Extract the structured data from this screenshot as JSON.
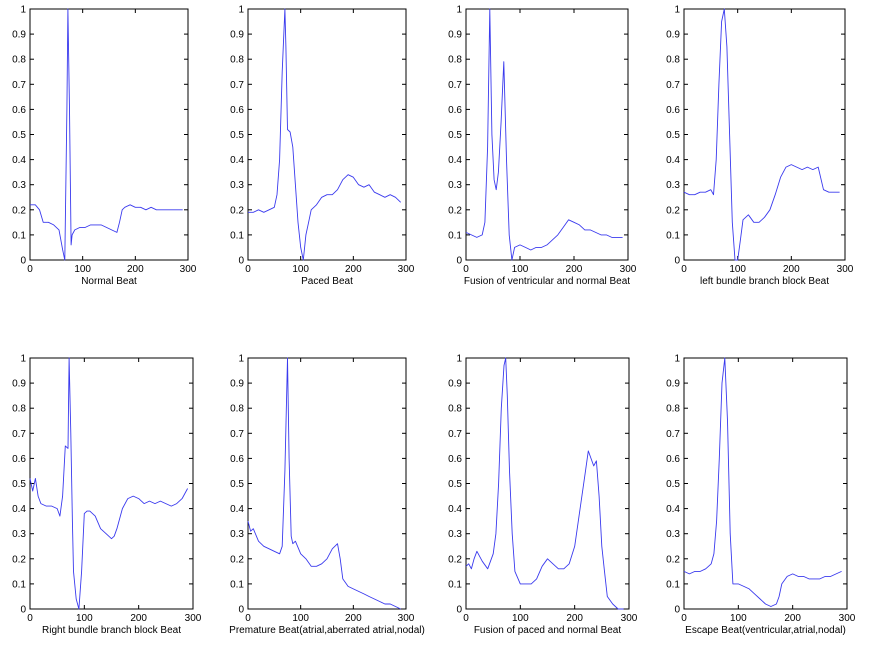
{
  "colors": {
    "trace": "#3a3aee",
    "axes": "#000000",
    "background": "#ffffff"
  },
  "chart_data": [
    {
      "type": "line",
      "xlabel": "Normal Beat",
      "xlim": [
        0,
        300
      ],
      "ylim": [
        0,
        1
      ],
      "xticks": [
        0,
        100,
        200,
        300
      ],
      "yticks": [
        0,
        0.1,
        0.2,
        0.3,
        0.4,
        0.5,
        0.6,
        0.7,
        0.8,
        0.9,
        1
      ],
      "series": [
        {
          "name": "Normal Beat",
          "x": [
            0,
            10,
            18,
            25,
            35,
            45,
            55,
            62,
            66,
            70,
            72,
            75,
            78,
            80,
            85,
            95,
            105,
            115,
            125,
            135,
            145,
            155,
            165,
            170,
            175,
            180,
            190,
            200,
            210,
            220,
            230,
            240,
            250,
            260,
            270,
            280,
            290
          ],
          "y": [
            0.22,
            0.22,
            0.2,
            0.15,
            0.15,
            0.14,
            0.12,
            0.04,
            0.0,
            0.6,
            1.0,
            0.6,
            0.06,
            0.1,
            0.12,
            0.13,
            0.13,
            0.14,
            0.14,
            0.14,
            0.13,
            0.12,
            0.11,
            0.15,
            0.2,
            0.21,
            0.22,
            0.21,
            0.21,
            0.2,
            0.21,
            0.2,
            0.2,
            0.2,
            0.2,
            0.2,
            0.2
          ]
        }
      ]
    },
    {
      "type": "line",
      "xlabel": "Paced Beat",
      "xlim": [
        0,
        300
      ],
      "ylim": [
        0,
        1
      ],
      "xticks": [
        0,
        100,
        200,
        300
      ],
      "yticks": [
        0,
        0.1,
        0.2,
        0.3,
        0.4,
        0.5,
        0.6,
        0.7,
        0.8,
        0.9,
        1
      ],
      "series": [
        {
          "name": "Paced Beat",
          "x": [
            0,
            10,
            20,
            30,
            40,
            50,
            55,
            60,
            65,
            70,
            72,
            75,
            80,
            85,
            90,
            95,
            100,
            105,
            110,
            115,
            120,
            130,
            140,
            150,
            160,
            170,
            180,
            190,
            200,
            210,
            220,
            230,
            240,
            250,
            260,
            270,
            280,
            290
          ],
          "y": [
            0.19,
            0.19,
            0.2,
            0.19,
            0.2,
            0.21,
            0.26,
            0.4,
            0.75,
            1.0,
            0.85,
            0.52,
            0.51,
            0.45,
            0.3,
            0.15,
            0.05,
            0.0,
            0.1,
            0.15,
            0.2,
            0.22,
            0.25,
            0.26,
            0.26,
            0.28,
            0.32,
            0.34,
            0.33,
            0.3,
            0.29,
            0.3,
            0.27,
            0.26,
            0.25,
            0.26,
            0.25,
            0.23
          ]
        }
      ]
    },
    {
      "type": "line",
      "xlabel": "Fusion of ventricular and normal Beat",
      "xlim": [
        0,
        300
      ],
      "ylim": [
        0,
        1
      ],
      "xticks": [
        0,
        100,
        200,
        300
      ],
      "yticks": [
        0,
        0.1,
        0.2,
        0.3,
        0.4,
        0.5,
        0.6,
        0.7,
        0.8,
        0.9,
        1
      ],
      "series": [
        {
          "name": "Fusion of ventricular and normal Beat",
          "x": [
            0,
            10,
            20,
            30,
            35,
            40,
            44,
            48,
            52,
            56,
            60,
            65,
            70,
            75,
            80,
            85,
            90,
            100,
            110,
            120,
            130,
            140,
            150,
            160,
            170,
            180,
            190,
            200,
            210,
            220,
            230,
            240,
            250,
            260,
            270,
            280,
            290
          ],
          "y": [
            0.11,
            0.1,
            0.09,
            0.1,
            0.15,
            0.45,
            1.0,
            0.5,
            0.32,
            0.28,
            0.35,
            0.55,
            0.79,
            0.4,
            0.1,
            0.0,
            0.05,
            0.06,
            0.05,
            0.04,
            0.05,
            0.05,
            0.06,
            0.08,
            0.1,
            0.13,
            0.16,
            0.15,
            0.14,
            0.12,
            0.12,
            0.11,
            0.1,
            0.1,
            0.09,
            0.09,
            0.09
          ]
        }
      ]
    },
    {
      "type": "line",
      "xlabel": "left bundle branch block Beat",
      "xlim": [
        0,
        300
      ],
      "ylim": [
        0,
        1
      ],
      "xticks": [
        0,
        100,
        200,
        300
      ],
      "yticks": [
        0,
        0.1,
        0.2,
        0.3,
        0.4,
        0.5,
        0.6,
        0.7,
        0.8,
        0.9,
        1
      ],
      "series": [
        {
          "name": "left bundle branch block Beat",
          "x": [
            0,
            10,
            20,
            30,
            40,
            50,
            55,
            60,
            65,
            70,
            75,
            80,
            85,
            90,
            95,
            100,
            105,
            110,
            120,
            130,
            140,
            150,
            160,
            170,
            180,
            190,
            200,
            210,
            220,
            230,
            240,
            250,
            260,
            270,
            280,
            290
          ],
          "y": [
            0.27,
            0.26,
            0.26,
            0.27,
            0.27,
            0.28,
            0.26,
            0.4,
            0.7,
            0.95,
            1.0,
            0.85,
            0.5,
            0.15,
            0.0,
            0.0,
            0.08,
            0.16,
            0.18,
            0.15,
            0.15,
            0.17,
            0.2,
            0.26,
            0.33,
            0.37,
            0.38,
            0.37,
            0.36,
            0.37,
            0.36,
            0.37,
            0.28,
            0.27,
            0.27,
            0.27
          ]
        }
      ]
    },
    {
      "type": "line",
      "xlabel": "Right bundle branch block Beat",
      "xlim": [
        0,
        300
      ],
      "ylim": [
        0,
        1
      ],
      "xticks": [
        0,
        100,
        200,
        300
      ],
      "yticks": [
        0,
        0.1,
        0.2,
        0.3,
        0.4,
        0.5,
        0.6,
        0.7,
        0.8,
        0.9,
        1
      ],
      "series": [
        {
          "name": "Right bundle branch block Beat",
          "x": [
            0,
            5,
            10,
            15,
            20,
            30,
            40,
            50,
            55,
            60,
            65,
            70,
            72,
            75,
            78,
            80,
            85,
            90,
            95,
            100,
            105,
            110,
            120,
            130,
            140,
            150,
            155,
            160,
            170,
            180,
            190,
            200,
            210,
            220,
            230,
            240,
            250,
            260,
            270,
            280,
            290
          ],
          "y": [
            0.52,
            0.47,
            0.52,
            0.45,
            0.42,
            0.41,
            0.41,
            0.4,
            0.37,
            0.45,
            0.65,
            0.64,
            1.0,
            0.7,
            0.35,
            0.15,
            0.04,
            0.0,
            0.15,
            0.38,
            0.39,
            0.39,
            0.37,
            0.32,
            0.3,
            0.28,
            0.29,
            0.32,
            0.4,
            0.44,
            0.45,
            0.44,
            0.42,
            0.43,
            0.42,
            0.43,
            0.42,
            0.41,
            0.42,
            0.44,
            0.48
          ]
        }
      ]
    },
    {
      "type": "line",
      "xlabel": "Premature Beat(atrial,aberrated atrial,nodal)",
      "xlim": [
        0,
        300
      ],
      "ylim": [
        0,
        1
      ],
      "xticks": [
        0,
        100,
        200,
        300
      ],
      "yticks": [
        0,
        0.1,
        0.2,
        0.3,
        0.4,
        0.5,
        0.6,
        0.7,
        0.8,
        0.9,
        1
      ],
      "series": [
        {
          "name": "Premature Beat(atrial,aberrated atrial,nodal)",
          "x": [
            0,
            5,
            10,
            20,
            30,
            40,
            50,
            60,
            65,
            70,
            75,
            78,
            82,
            85,
            90,
            100,
            110,
            120,
            130,
            140,
            150,
            160,
            170,
            175,
            180,
            190,
            200,
            210,
            220,
            230,
            240,
            250,
            260,
            270,
            280,
            290
          ],
          "y": [
            0.35,
            0.31,
            0.32,
            0.27,
            0.25,
            0.24,
            0.23,
            0.22,
            0.25,
            0.55,
            1.0,
            0.6,
            0.29,
            0.26,
            0.27,
            0.22,
            0.2,
            0.17,
            0.17,
            0.18,
            0.2,
            0.24,
            0.26,
            0.2,
            0.12,
            0.09,
            0.08,
            0.07,
            0.06,
            0.05,
            0.04,
            0.03,
            0.02,
            0.02,
            0.01,
            0.0
          ]
        }
      ]
    },
    {
      "type": "line",
      "xlabel": "Fusion of paced and normal Beat",
      "xlim": [
        0,
        300
      ],
      "ylim": [
        0,
        1
      ],
      "xticks": [
        0,
        100,
        200,
        300
      ],
      "yticks": [
        0,
        0.1,
        0.2,
        0.3,
        0.4,
        0.5,
        0.6,
        0.7,
        0.8,
        0.9,
        1
      ],
      "series": [
        {
          "name": "Fusion of paced and normal Beat",
          "x": [
            0,
            5,
            10,
            15,
            20,
            30,
            40,
            50,
            55,
            60,
            65,
            70,
            73,
            76,
            80,
            85,
            90,
            100,
            110,
            120,
            130,
            140,
            150,
            160,
            170,
            180,
            190,
            200,
            210,
            220,
            225,
            230,
            235,
            240,
            245,
            250,
            255,
            260,
            270,
            280,
            290
          ],
          "y": [
            0.17,
            0.18,
            0.16,
            0.2,
            0.23,
            0.19,
            0.16,
            0.22,
            0.3,
            0.5,
            0.8,
            0.97,
            1.0,
            0.85,
            0.55,
            0.3,
            0.15,
            0.1,
            0.1,
            0.1,
            0.12,
            0.17,
            0.2,
            0.18,
            0.16,
            0.16,
            0.18,
            0.25,
            0.4,
            0.55,
            0.63,
            0.6,
            0.57,
            0.59,
            0.45,
            0.25,
            0.15,
            0.05,
            0.02,
            0.0,
            0.0
          ]
        }
      ]
    },
    {
      "type": "line",
      "xlabel": "Escape  Beat(ventricular,atrial,nodal)",
      "xlim": [
        0,
        300
      ],
      "ylim": [
        0,
        1
      ],
      "xticks": [
        0,
        100,
        200,
        300
      ],
      "yticks": [
        0,
        0.1,
        0.2,
        0.3,
        0.4,
        0.5,
        0.6,
        0.7,
        0.8,
        0.9,
        1
      ],
      "series": [
        {
          "name": "Escape  Beat(ventricular,atrial,nodal)",
          "x": [
            0,
            10,
            20,
            30,
            40,
            45,
            50,
            55,
            60,
            65,
            70,
            75,
            80,
            85,
            90,
            100,
            110,
            120,
            130,
            140,
            150,
            160,
            170,
            175,
            180,
            190,
            200,
            210,
            220,
            230,
            240,
            250,
            260,
            270,
            280,
            290
          ],
          "y": [
            0.15,
            0.14,
            0.15,
            0.15,
            0.16,
            0.17,
            0.18,
            0.22,
            0.35,
            0.6,
            0.9,
            1.0,
            0.75,
            0.3,
            0.1,
            0.1,
            0.09,
            0.08,
            0.06,
            0.04,
            0.02,
            0.01,
            0.02,
            0.05,
            0.1,
            0.13,
            0.14,
            0.13,
            0.13,
            0.12,
            0.12,
            0.12,
            0.13,
            0.13,
            0.14,
            0.15
          ]
        }
      ]
    }
  ]
}
